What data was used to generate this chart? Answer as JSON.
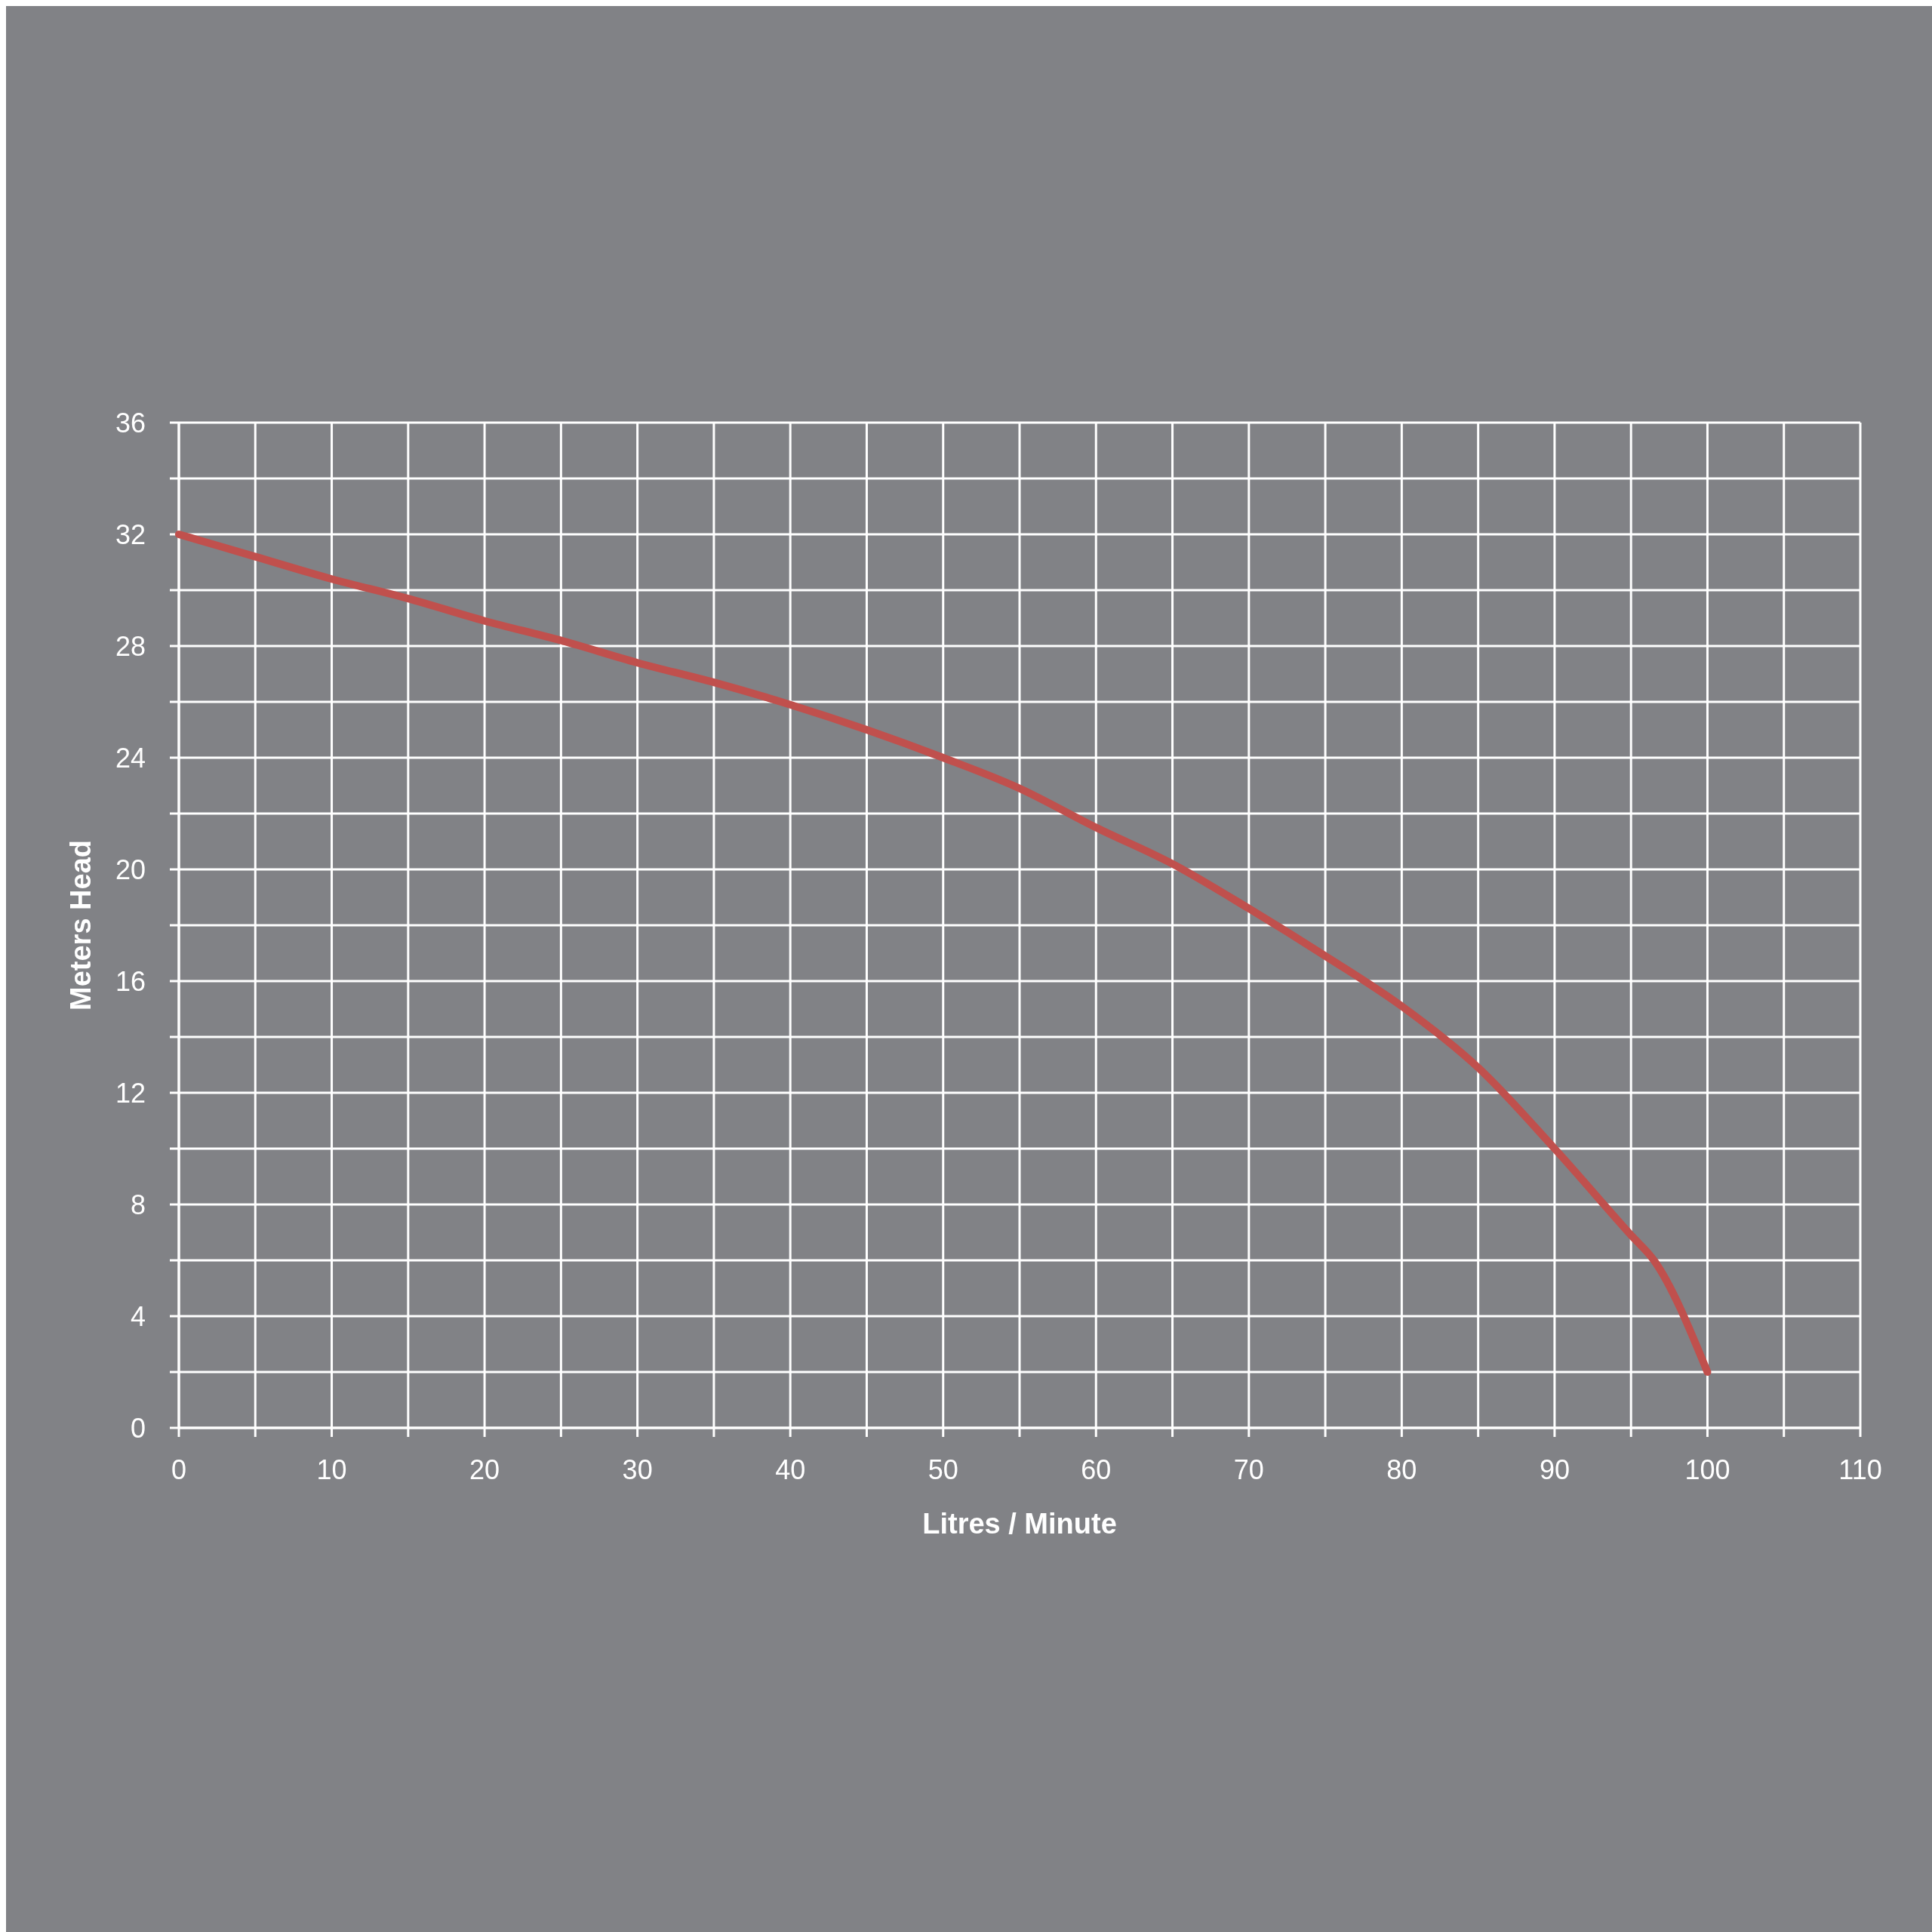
{
  "chart_data": {
    "type": "line",
    "xlabel": "Litres / Minute",
    "ylabel": "Meters Head",
    "x": [
      0,
      5,
      10,
      15,
      20,
      25,
      30,
      35,
      40,
      45,
      50,
      55,
      60,
      65,
      70,
      75,
      80,
      85,
      90,
      95,
      96.5,
      100
    ],
    "series": [
      {
        "color": "#c0504d",
        "values": [
          32,
          31.2,
          30.4,
          29.7,
          28.9,
          28.2,
          27.4,
          26.7,
          25.9,
          25.0,
          24.0,
          22.9,
          21.5,
          20.2,
          18.6,
          16.9,
          15.1,
          12.9,
          10,
          6.9,
          6,
          2
        ]
      }
    ],
    "xlim": [
      0,
      110
    ],
    "xticks": [
      0,
      {
        "value": 5,
        "label": null
      },
      10,
      {
        "value": 15,
        "label": null
      },
      20,
      {
        "value": 25,
        "label": null
      },
      30,
      {
        "value": 35,
        "label": null
      },
      40,
      {
        "value": 45,
        "label": null
      },
      50,
      {
        "value": 55,
        "label": null
      },
      60,
      {
        "value": 65,
        "label": null
      },
      70,
      {
        "value": 75,
        "label": null
      },
      80,
      {
        "value": 85,
        "label": null
      },
      90,
      {
        "value": 95,
        "label": null
      },
      100,
      {
        "value": 105,
        "label": null
      },
      110
    ],
    "ylim": [
      0,
      36
    ],
    "yticks": [
      0,
      {
        "value": 2,
        "label": null
      },
      4,
      {
        "value": 6,
        "label": null
      },
      8,
      {
        "value": 10,
        "label": null
      },
      12,
      {
        "value": 14,
        "label": null
      },
      16,
      {
        "value": 18,
        "label": null
      },
      20,
      {
        "value": 22,
        "label": null
      },
      24,
      {
        "value": 26,
        "label": null
      },
      28,
      {
        "value": 30,
        "label": null
      },
      32,
      {
        "value": 34,
        "label": null
      },
      36
    ],
    "grid": true
  }
}
